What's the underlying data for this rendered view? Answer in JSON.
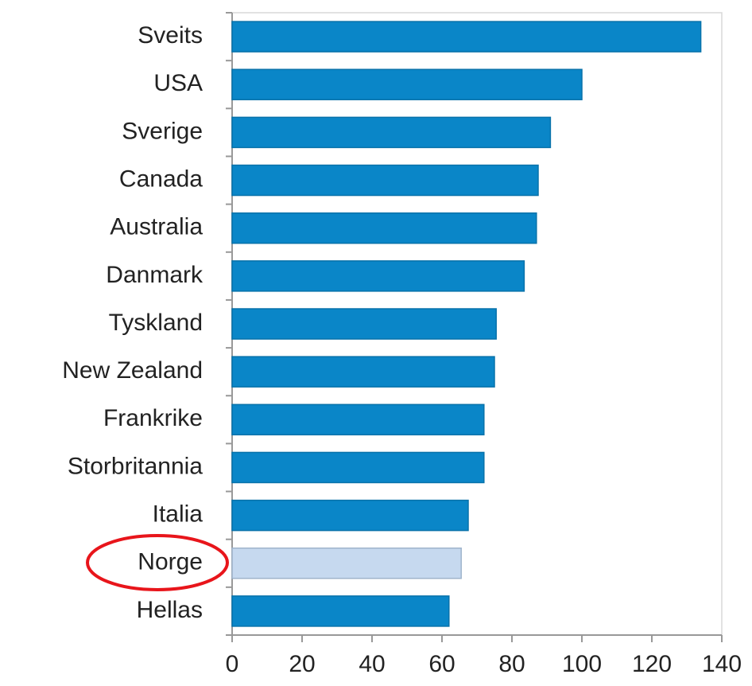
{
  "chart_data": {
    "type": "bar",
    "orientation": "horizontal",
    "categories": [
      "Sveits",
      "USA",
      "Sverige",
      "Canada",
      "Australia",
      "Danmark",
      "Tyskland",
      "New Zealand",
      "Frankrike",
      "Storbritannia",
      "Italia",
      "Norge",
      "Hellas"
    ],
    "values": [
      134,
      100,
      91,
      87.5,
      87,
      83.5,
      75.5,
      75,
      72,
      72,
      67.5,
      65.5,
      62
    ],
    "colors": [
      "#0a86c8",
      "#0a86c8",
      "#0a86c8",
      "#0a86c8",
      "#0a86c8",
      "#0a86c8",
      "#0a86c8",
      "#0a86c8",
      "#0a86c8",
      "#0a86c8",
      "#0a86c8",
      "#c6d9ef",
      "#0a86c8"
    ],
    "xlim": [
      0,
      140
    ],
    "xticks": [
      0,
      20,
      40,
      60,
      80,
      100,
      120,
      140
    ],
    "grid": false
  }
}
